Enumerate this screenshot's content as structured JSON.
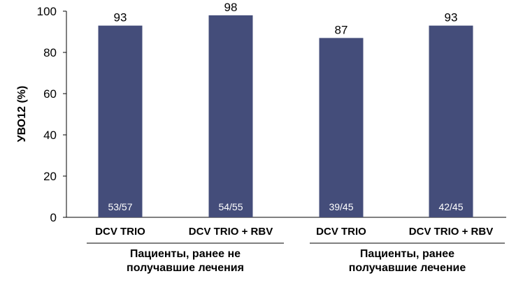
{
  "chart_data": {
    "type": "bar",
    "ylabel": "УВО12 (%)",
    "ylim": [
      0,
      100
    ],
    "yticks": [
      "0",
      "20",
      "40",
      "60",
      "80",
      "100"
    ],
    "grid": false,
    "categories": [
      "DCV TRIO",
      "DCV TRIO + RBV",
      "DCV TRIO",
      "DCV TRIO + RBV"
    ],
    "values": [
      93,
      98,
      87,
      93
    ],
    "value_labels": [
      "93",
      "98",
      "87",
      "93"
    ],
    "fraction_labels": [
      "53/57",
      "54/55",
      "39/45",
      "42/45"
    ],
    "groups": [
      {
        "label_lines": [
          "Пациенты, ранее не",
          "получавшие лечения"
        ]
      },
      {
        "label_lines": [
          "Пациенты, ранее",
          "получавшие лечение"
        ]
      }
    ],
    "colors": {
      "bar": "#444d7a",
      "fraction_text": "#ffffff"
    }
  }
}
